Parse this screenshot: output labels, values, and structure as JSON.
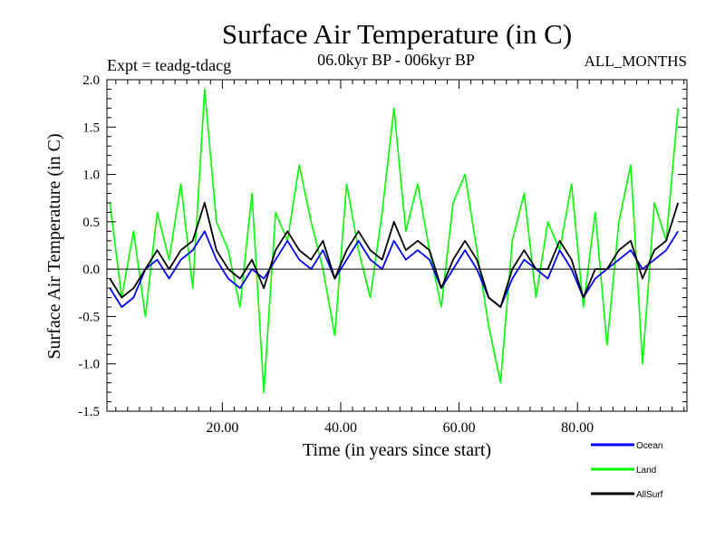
{
  "chart_data": {
    "type": "line",
    "title": "Surface Air Temperature (in C)",
    "subtitle": "06.0kyr BP - 006kyr BP",
    "experiment_label": "Expt = teadg-tdacg",
    "period_label": "ALL_MONTHS",
    "xlabel": "Time (in years since start)",
    "ylabel": "Surface Air Temperature (in C)",
    "xlim": [
      0.5,
      98.5
    ],
    "ylim": [
      -1.5,
      2.0
    ],
    "x_ticks": [
      20,
      40,
      60,
      80
    ],
    "x_tick_labels": [
      "20.00",
      "40.00",
      "60.00",
      "80.00"
    ],
    "y_ticks": [
      -1.5,
      -1.0,
      -0.5,
      0.0,
      0.5,
      1.0,
      1.5,
      2.0
    ],
    "y_tick_labels": [
      "-1.5",
      "-1.0",
      "-0.5",
      "0.0",
      "0.5",
      "1.0",
      "1.5",
      "2.0"
    ],
    "zero_line": true,
    "grid": false,
    "legend_position": "bottom-right, outside plot",
    "series": [
      {
        "name": "Land",
        "color": "#00ff00",
        "x": [
          1,
          3,
          5,
          7,
          9,
          11,
          13,
          15,
          17,
          19,
          21,
          23,
          25,
          27,
          29,
          31,
          33,
          35,
          37,
          39,
          41,
          43,
          45,
          47,
          49,
          51,
          53,
          55,
          57,
          59,
          61,
          63,
          65,
          67,
          69,
          71,
          73,
          75,
          77,
          79,
          81,
          83,
          85,
          87,
          89,
          91,
          93,
          95,
          97
        ],
        "values": [
          0.7,
          -0.3,
          0.4,
          -0.5,
          0.6,
          0.1,
          0.9,
          -0.2,
          1.9,
          0.5,
          0.2,
          -0.4,
          0.8,
          -1.3,
          0.6,
          0.3,
          1.1,
          0.5,
          0.0,
          -0.7,
          0.9,
          0.2,
          -0.3,
          0.6,
          1.7,
          0.4,
          0.9,
          0.2,
          -0.4,
          0.7,
          1.0,
          0.2,
          -0.6,
          -1.2,
          0.3,
          0.8,
          -0.3,
          0.5,
          0.2,
          0.9,
          -0.4,
          0.6,
          -0.8,
          0.5,
          1.1,
          -1.0,
          0.7,
          0.3,
          1.7
        ]
      },
      {
        "name": "Ocean",
        "color": "#0000ff",
        "x": [
          1,
          3,
          5,
          7,
          9,
          11,
          13,
          15,
          17,
          19,
          21,
          23,
          25,
          27,
          29,
          31,
          33,
          35,
          37,
          39,
          41,
          43,
          45,
          47,
          49,
          51,
          53,
          55,
          57,
          59,
          61,
          63,
          65,
          67,
          69,
          71,
          73,
          75,
          77,
          79,
          81,
          83,
          85,
          87,
          89,
          91,
          93,
          95,
          97
        ],
        "values": [
          -0.2,
          -0.4,
          -0.3,
          0.0,
          0.1,
          -0.1,
          0.1,
          0.2,
          0.4,
          0.1,
          -0.1,
          -0.2,
          0.0,
          -0.1,
          0.1,
          0.3,
          0.1,
          0.0,
          0.2,
          -0.1,
          0.1,
          0.3,
          0.1,
          0.0,
          0.3,
          0.1,
          0.2,
          0.1,
          -0.2,
          0.0,
          0.2,
          0.0,
          -0.3,
          -0.4,
          -0.1,
          0.1,
          0.0,
          -0.1,
          0.2,
          0.0,
          -0.3,
          -0.1,
          0.0,
          0.1,
          0.2,
          0.0,
          0.1,
          0.2,
          0.4
        ]
      },
      {
        "name": "AllSurf",
        "color": "#000000",
        "x": [
          1,
          3,
          5,
          7,
          9,
          11,
          13,
          15,
          17,
          19,
          21,
          23,
          25,
          27,
          29,
          31,
          33,
          35,
          37,
          39,
          41,
          43,
          45,
          47,
          49,
          51,
          53,
          55,
          57,
          59,
          61,
          63,
          65,
          67,
          69,
          71,
          73,
          75,
          77,
          79,
          81,
          83,
          85,
          87,
          89,
          91,
          93,
          95,
          97
        ],
        "values": [
          -0.1,
          -0.3,
          -0.2,
          0.0,
          0.2,
          0.0,
          0.2,
          0.3,
          0.7,
          0.2,
          0.0,
          -0.1,
          0.1,
          -0.2,
          0.2,
          0.4,
          0.2,
          0.1,
          0.3,
          -0.1,
          0.2,
          0.4,
          0.2,
          0.1,
          0.5,
          0.2,
          0.3,
          0.2,
          -0.2,
          0.1,
          0.3,
          0.1,
          -0.3,
          -0.4,
          0.0,
          0.2,
          0.0,
          0.0,
          0.3,
          0.1,
          -0.3,
          0.0,
          0.0,
          0.2,
          0.3,
          -0.1,
          0.2,
          0.3,
          0.7
        ]
      }
    ]
  }
}
